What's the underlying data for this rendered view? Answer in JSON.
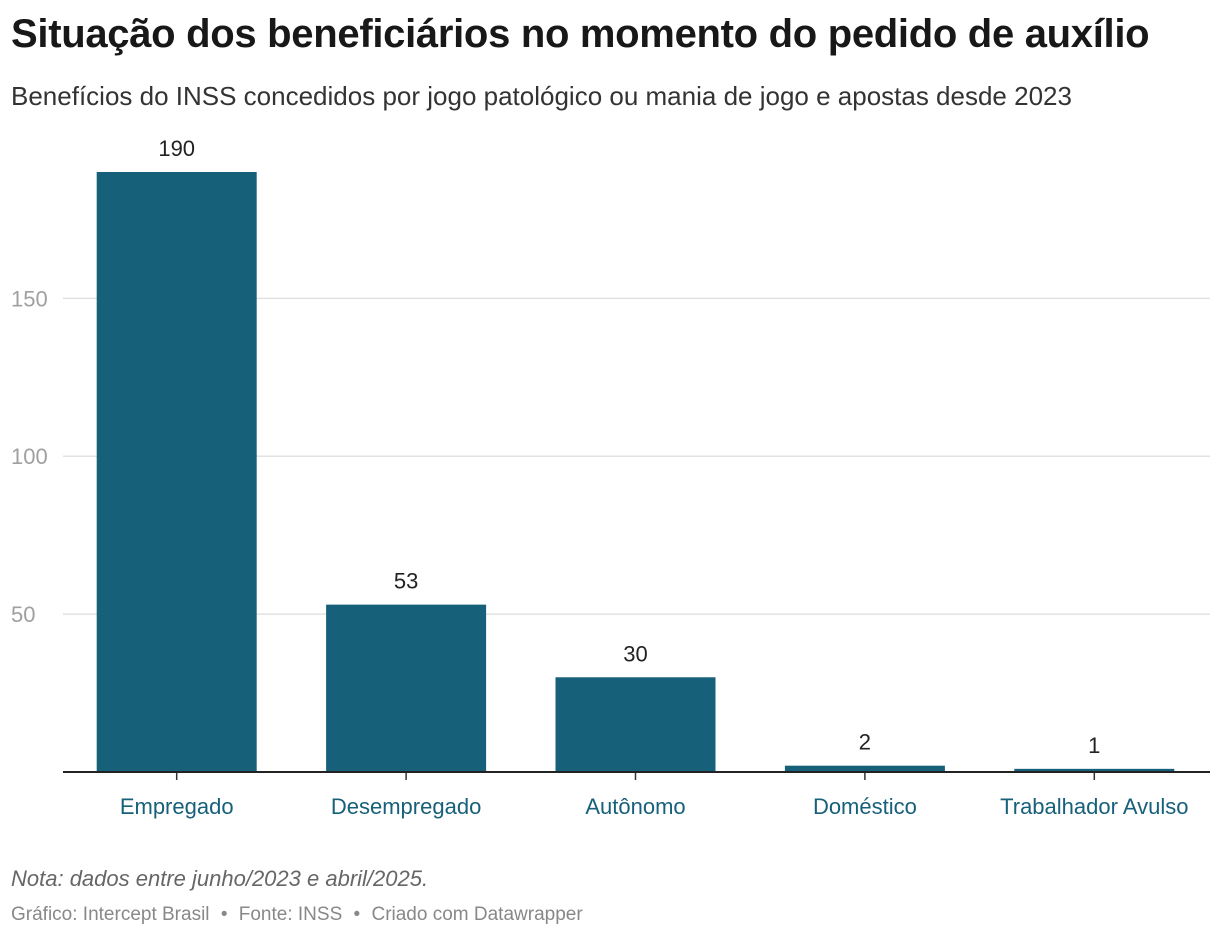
{
  "header": {
    "title": "Situação dos beneficiários no momento do pedido de auxílio",
    "subtitle": "Benefícios do INSS concedidos por jogo patológico ou mania de jogo e apostas desde 2023"
  },
  "colors": {
    "bar": "#17607a",
    "category_label": "#17607a",
    "gridline": "#e2e2e2",
    "tick_label": "#a0a0a0",
    "baseline": "#222222"
  },
  "chart_data": {
    "type": "bar",
    "title": "Situação dos beneficiários no momento do pedido de auxílio",
    "xlabel": "",
    "ylabel": "",
    "categories": [
      "Empregado",
      "Desempregado",
      "Autônomo",
      "Doméstico",
      "Trabalhador Avulso"
    ],
    "values": [
      190,
      53,
      30,
      2,
      1
    ],
    "value_labels": [
      "190",
      "53",
      "30",
      "2",
      "1"
    ],
    "ylim": [
      0,
      190
    ],
    "yticks": [
      50,
      100,
      150
    ],
    "ytick_labels": [
      "50",
      "100",
      "150"
    ],
    "grid": true
  },
  "footer": {
    "note": "Nota: dados entre junho/2023 e abril/2025.",
    "credit": "Gráfico: Intercept Brasil",
    "source": "Fonte: INSS",
    "tool": "Criado com Datawrapper",
    "separator": "•"
  }
}
